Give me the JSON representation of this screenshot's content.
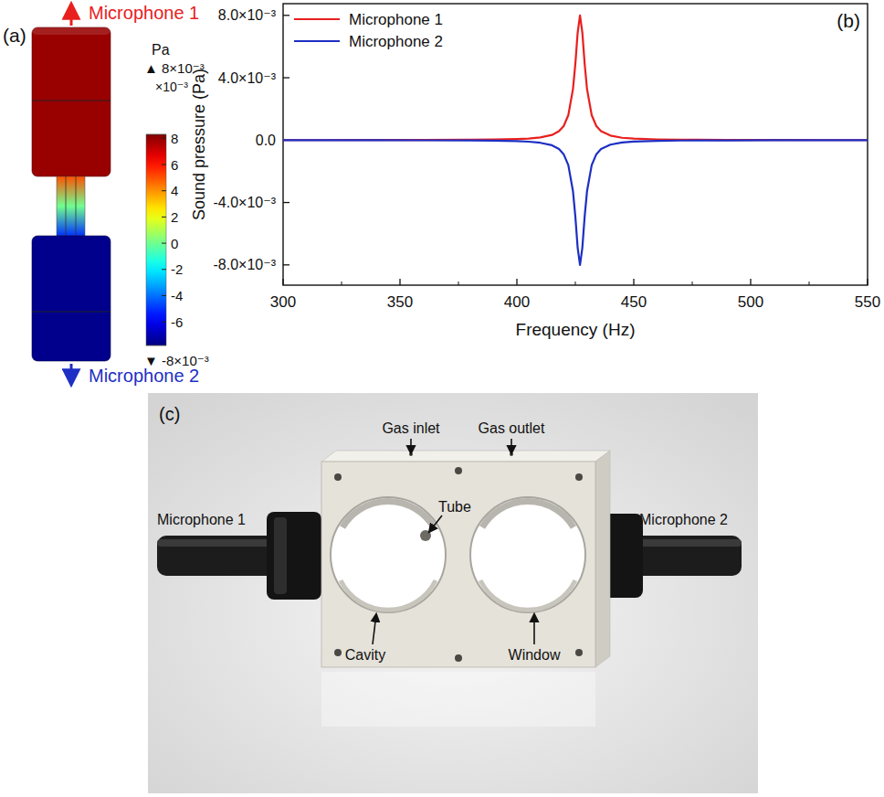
{
  "panel_a": {
    "label": "(a)",
    "top_label": "Microphone 1",
    "bottom_label": "Microphone 2",
    "field": {
      "top_cavity": 7.9,
      "tube_top": 5,
      "tube_bottom": -5,
      "bottom_cavity": -7.6
    },
    "colorbar": {
      "unit": "Pa",
      "max_label": "▲ 8×10⁻³",
      "multiplier": "×10⁻³",
      "min_label": "▼ -8×10⁻³",
      "range": [
        -7.8,
        8.3
      ],
      "ticks": [
        8,
        6,
        4,
        2,
        0,
        -2,
        -4,
        -6
      ]
    }
  },
  "panel_b": {
    "label": "(b)"
  },
  "chart_data": {
    "type": "line",
    "x_label": "Frequency (Hz)",
    "y_label": "Sound pressure (Pa)",
    "x": [
      300,
      320,
      340,
      360,
      380,
      390,
      400,
      405,
      410,
      415,
      418,
      420,
      422,
      424,
      425,
      426,
      427,
      428,
      429,
      430,
      432,
      434,
      436,
      440,
      445,
      450,
      460,
      470,
      490,
      510,
      530,
      550
    ],
    "series": [
      {
        "name": "Microphone 1",
        "color": "#e8201e",
        "values": [
          3e-06,
          4.4e-06,
          6.6e-06,
          1.1e-05,
          2.3e-05,
          3.6e-05,
          6.8e-05,
          0.0001,
          0.00017,
          0.00033,
          0.00057,
          0.0009,
          0.0016,
          0.00328,
          0.00488,
          0.0069,
          0.008,
          0.0069,
          0.00488,
          0.00328,
          0.0016,
          0.0009,
          0.00057,
          0.00029,
          0.00015,
          9.3e-05,
          4.6e-05,
          2.7e-05,
          1.3e-05,
          7.3e-06,
          4.7e-06,
          3.3e-06
        ]
      },
      {
        "name": "Microphone 2",
        "color": "#1d2fc4",
        "values": [
          -3e-06,
          -4.4e-06,
          -6.6e-06,
          -1.1e-05,
          -2.3e-05,
          -3.6e-05,
          -6.8e-05,
          -0.0001,
          -0.00017,
          -0.00033,
          -0.00057,
          -0.0009,
          -0.0016,
          -0.00328,
          -0.00488,
          -0.0069,
          -0.008,
          -0.0069,
          -0.00488,
          -0.00328,
          -0.0016,
          -0.0009,
          -0.00057,
          -0.00029,
          -0.00015,
          -9.3e-05,
          -4.6e-05,
          -2.7e-05,
          -1.3e-05,
          -7.3e-06,
          -4.7e-06,
          -3.3e-06
        ]
      }
    ],
    "xlim": [
      300,
      550
    ],
    "xticks": [
      300,
      350,
      400,
      450,
      500,
      550
    ],
    "ylim": [
      -0.0093,
      0.00875
    ],
    "yticks": [
      {
        "value": -0.008,
        "label": "-8.0×10⁻³"
      },
      {
        "value": -0.004,
        "label": "-4.0×10⁻³"
      },
      {
        "value": 0,
        "label": "0.0"
      },
      {
        "value": 0.004,
        "label": "4.0×10⁻³"
      },
      {
        "value": 0.008,
        "label": "8.0×10⁻³"
      }
    ],
    "grid": false,
    "legend": "upper left"
  },
  "panel_c": {
    "label": "(c)",
    "parts": {
      "gas_inlet": "Gas inlet",
      "gas_outlet": "Gas outlet",
      "tube": "Tube",
      "cavity": "Cavity",
      "window": "Window",
      "microphone_1": "Microphone 1",
      "microphone_2": "Microphone 2"
    }
  }
}
